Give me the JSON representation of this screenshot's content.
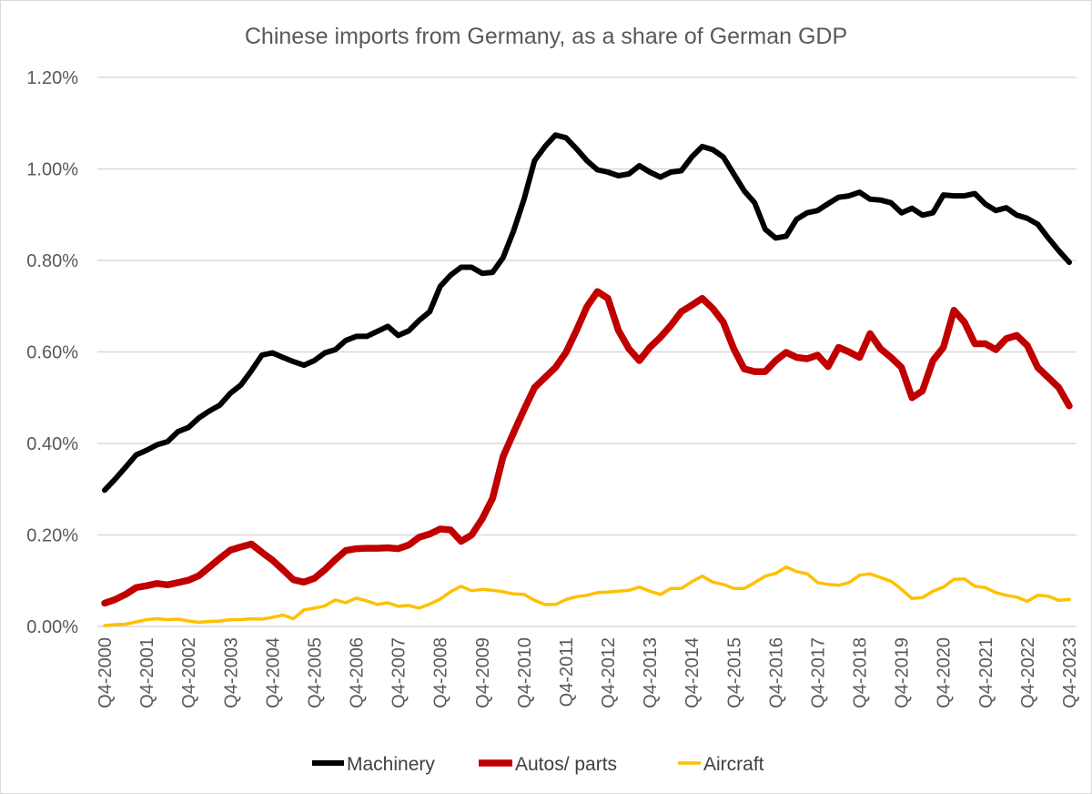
{
  "chart_data": {
    "type": "line",
    "title": "Chinese imports from Germany, as a share of German GDP",
    "xlabel": "",
    "ylabel": "",
    "ylim": [
      0,
      1.2
    ],
    "y_ticks": [
      "0.00%",
      "0.20%",
      "0.40%",
      "0.60%",
      "0.80%",
      "1.00%",
      "1.20%"
    ],
    "y_tick_values": [
      0,
      0.2,
      0.4,
      0.6,
      0.8,
      1.0,
      1.2
    ],
    "y_unit": "%",
    "grid": "horizontal",
    "legend_position": "bottom",
    "x_tick_labels": [
      "Q4-2000",
      "Q4-2001",
      "Q4-2002",
      "Q4-2003",
      "Q4-2004",
      "Q4-2005",
      "Q4-2006",
      "Q4-2007",
      "Q4-2008",
      "Q4-2009",
      "Q4-2010",
      "Q4-2011",
      "Q4-2012",
      "Q4-2013",
      "Q4-2014",
      "Q4-2015",
      "Q4-2016",
      "Q4-2017",
      "Q4-2018",
      "Q4-2019",
      "Q4-2020",
      "Q4-2021",
      "Q4-2022",
      "Q4-2023"
    ],
    "categories": [
      "Q4-2000",
      "Q1-2001",
      "Q2-2001",
      "Q3-2001",
      "Q4-2001",
      "Q1-2002",
      "Q2-2002",
      "Q3-2002",
      "Q4-2002",
      "Q1-2003",
      "Q2-2003",
      "Q3-2003",
      "Q4-2003",
      "Q1-2004",
      "Q2-2004",
      "Q3-2004",
      "Q4-2004",
      "Q1-2005",
      "Q2-2005",
      "Q3-2005",
      "Q4-2005",
      "Q1-2006",
      "Q2-2006",
      "Q3-2006",
      "Q4-2006",
      "Q1-2007",
      "Q2-2007",
      "Q3-2007",
      "Q4-2007",
      "Q1-2008",
      "Q2-2008",
      "Q3-2008",
      "Q4-2008",
      "Q1-2009",
      "Q2-2009",
      "Q3-2009",
      "Q4-2009",
      "Q1-2010",
      "Q2-2010",
      "Q3-2010",
      "Q4-2010",
      "Q1-2011",
      "Q2-2011",
      "Q3-2011",
      "Q4-2011",
      "Q1-2012",
      "Q2-2012",
      "Q3-2012",
      "Q4-2012",
      "Q1-2013",
      "Q2-2013",
      "Q3-2013",
      "Q4-2013",
      "Q1-2014",
      "Q2-2014",
      "Q3-2014",
      "Q4-2014",
      "Q1-2015",
      "Q2-2015",
      "Q3-2015",
      "Q4-2015",
      "Q1-2016",
      "Q2-2016",
      "Q3-2016",
      "Q4-2016",
      "Q1-2017",
      "Q2-2017",
      "Q3-2017",
      "Q4-2017",
      "Q1-2018",
      "Q2-2018",
      "Q3-2018",
      "Q4-2018",
      "Q1-2019",
      "Q2-2019",
      "Q3-2019",
      "Q4-2019",
      "Q1-2020",
      "Q2-2020",
      "Q3-2020",
      "Q4-2020",
      "Q1-2021",
      "Q2-2021",
      "Q3-2021",
      "Q4-2021",
      "Q1-2022",
      "Q2-2022",
      "Q3-2022",
      "Q4-2022",
      "Q1-2023",
      "Q2-2023",
      "Q3-2023",
      "Q4-2023"
    ],
    "series": [
      {
        "name": "Machinery",
        "color": "#000000",
        "values": [
          0.298,
          0.322,
          0.348,
          0.375,
          0.385,
          0.397,
          0.404,
          0.426,
          0.435,
          0.456,
          0.471,
          0.484,
          0.51,
          0.528,
          0.559,
          0.593,
          0.598,
          0.588,
          0.579,
          0.571,
          0.581,
          0.598,
          0.605,
          0.625,
          0.634,
          0.634,
          0.645,
          0.656,
          0.636,
          0.646,
          0.669,
          0.688,
          0.743,
          0.768,
          0.785,
          0.785,
          0.772,
          0.774,
          0.806,
          0.864,
          0.934,
          1.018,
          1.049,
          1.074,
          1.068,
          1.044,
          1.018,
          0.998,
          0.993,
          0.985,
          0.989,
          1.007,
          0.993,
          0.982,
          0.993,
          0.996,
          1.026,
          1.049,
          1.042,
          1.026,
          0.989,
          0.952,
          0.926,
          0.868,
          0.849,
          0.853,
          0.89,
          0.904,
          0.909,
          0.924,
          0.938,
          0.941,
          0.949,
          0.934,
          0.932,
          0.926,
          0.904,
          0.914,
          0.899,
          0.904,
          0.943,
          0.941,
          0.941,
          0.946,
          0.923,
          0.909,
          0.915,
          0.899,
          0.892,
          0.879,
          0.849,
          0.821,
          0.796
        ]
      },
      {
        "name": "Autos/ parts",
        "color": "#C00000",
        "values": [
          0.051,
          0.059,
          0.07,
          0.085,
          0.089,
          0.094,
          0.091,
          0.096,
          0.101,
          0.111,
          0.13,
          0.149,
          0.167,
          0.174,
          0.18,
          0.162,
          0.145,
          0.124,
          0.102,
          0.097,
          0.105,
          0.124,
          0.146,
          0.166,
          0.17,
          0.171,
          0.171,
          0.172,
          0.17,
          0.178,
          0.195,
          0.202,
          0.213,
          0.211,
          0.186,
          0.2,
          0.235,
          0.28,
          0.371,
          0.423,
          0.474,
          0.522,
          0.544,
          0.566,
          0.599,
          0.647,
          0.699,
          0.732,
          0.717,
          0.647,
          0.607,
          0.581,
          0.61,
          0.632,
          0.658,
          0.688,
          0.702,
          0.717,
          0.695,
          0.665,
          0.607,
          0.563,
          0.557,
          0.557,
          0.581,
          0.599,
          0.588,
          0.585,
          0.593,
          0.568,
          0.61,
          0.6,
          0.588,
          0.64,
          0.607,
          0.588,
          0.566,
          0.5,
          0.515,
          0.581,
          0.61,
          0.691,
          0.665,
          0.618,
          0.618,
          0.605,
          0.629,
          0.636,
          0.614,
          0.566,
          0.544,
          0.522,
          0.482
        ]
      },
      {
        "name": "Aircraft",
        "color": "#FFC000",
        "values": [
          0.002,
          0.004,
          0.005,
          0.01,
          0.015,
          0.017,
          0.015,
          0.016,
          0.012,
          0.009,
          0.011,
          0.012,
          0.015,
          0.015,
          0.017,
          0.016,
          0.02,
          0.025,
          0.017,
          0.036,
          0.04,
          0.045,
          0.058,
          0.052,
          0.062,
          0.056,
          0.048,
          0.052,
          0.044,
          0.046,
          0.04,
          0.049,
          0.06,
          0.076,
          0.088,
          0.078,
          0.081,
          0.079,
          0.076,
          0.071,
          0.07,
          0.057,
          0.048,
          0.048,
          0.059,
          0.065,
          0.068,
          0.074,
          0.075,
          0.077,
          0.079,
          0.086,
          0.077,
          0.07,
          0.083,
          0.083,
          0.098,
          0.11,
          0.097,
          0.092,
          0.083,
          0.083,
          0.096,
          0.11,
          0.116,
          0.13,
          0.12,
          0.115,
          0.096,
          0.092,
          0.09,
          0.096,
          0.112,
          0.115,
          0.107,
          0.099,
          0.081,
          0.061,
          0.063,
          0.077,
          0.086,
          0.103,
          0.104,
          0.088,
          0.085,
          0.074,
          0.068,
          0.064,
          0.055,
          0.068,
          0.066,
          0.057,
          0.059
        ]
      }
    ]
  }
}
